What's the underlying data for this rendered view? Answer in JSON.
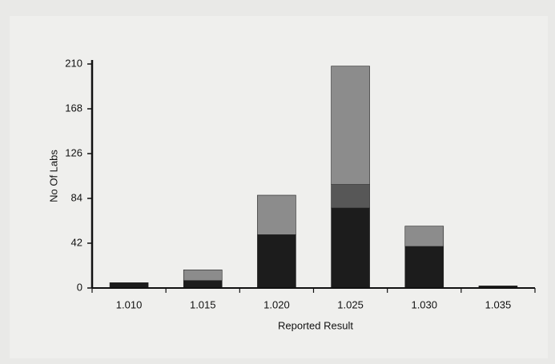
{
  "chart_data": {
    "type": "stacked_bar",
    "x_label": "Reported Result",
    "y_label": "No Of Labs",
    "categories": [
      "1.010",
      "1.015",
      "1.020",
      "1.025",
      "1.030",
      "1.035"
    ],
    "series": [
      {
        "color": "#1c1c1c",
        "values": [
          5,
          7,
          50,
          75,
          39,
          2
        ]
      },
      {
        "color": "#575757",
        "values": [
          0,
          0,
          0,
          22,
          0,
          0
        ]
      },
      {
        "color": "#8c8c8c",
        "values": [
          0,
          10,
          37,
          111,
          19,
          0
        ]
      }
    ],
    "ylim": [
      0,
      210
    ],
    "yticks": [
      0,
      42,
      84,
      126,
      168,
      210
    ],
    "grid": false
  }
}
